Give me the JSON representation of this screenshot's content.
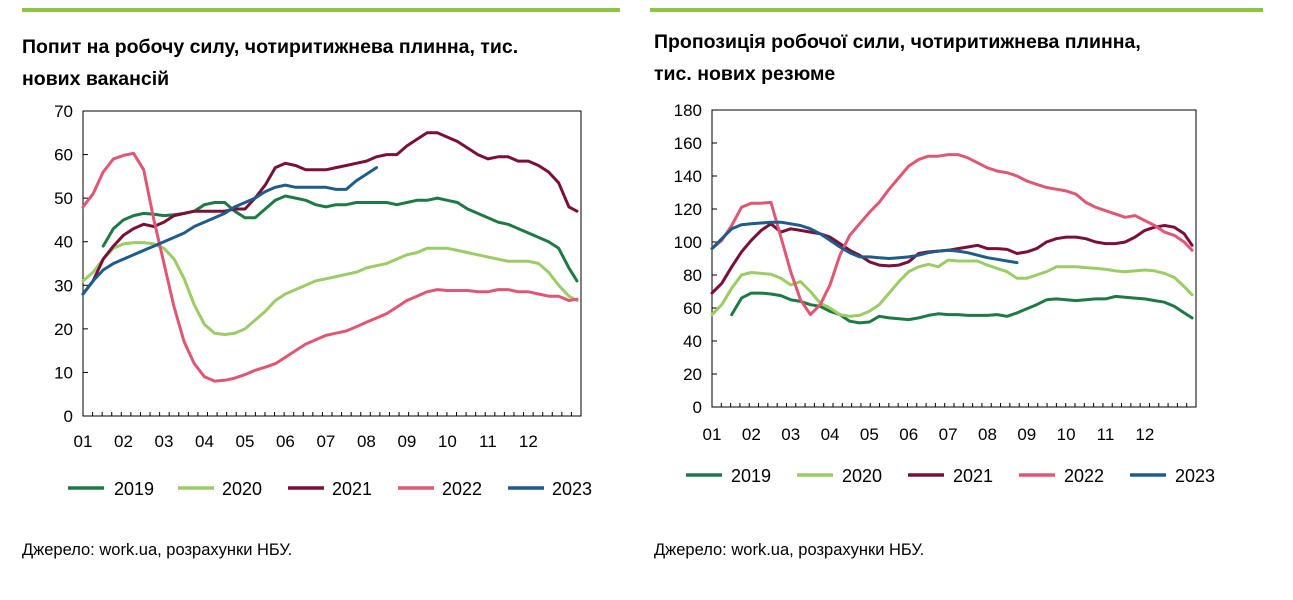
{
  "colors": {
    "2019": "#1e7a45",
    "2020": "#9ccc65",
    "2021": "#7a1038",
    "2022": "#e05776",
    "2023": "#1f5c8c",
    "rule": "#8cc63f"
  },
  "charts": [
    {
      "title_line1": "Попит на робочу силу, чотиритижнева плинна, тис.",
      "title_line2": "нових вакансій",
      "source": "Джерело: work.ua, розрахунки НБУ."
    },
    {
      "title_line1": "Пропозиція робочої сили, чотиритижнева плинна,",
      "title_line2": "тис. нових резюме",
      "source": "Джерело: work.ua, розрахунки НБУ."
    }
  ],
  "chart_data": [
    {
      "type": "line",
      "title": "Попит на робочу силу, чотиритижнева плинна, тис. нових вакансій",
      "categories": [
        "01",
        "02",
        "03",
        "04",
        "05",
        "06",
        "07",
        "08",
        "09",
        "10",
        "11",
        "12"
      ],
      "ylim": [
        0,
        70
      ],
      "yticks": [
        "0",
        "10",
        "20",
        "30",
        "40",
        "50",
        "60",
        "70"
      ],
      "grid": false,
      "legend": "bottom",
      "series": [
        {
          "name": "2019",
          "x": [
            1.5,
            1.75,
            2.0,
            2.25,
            2.5,
            2.75,
            3.0,
            3.25,
            3.5,
            3.75,
            4.0,
            4.25,
            4.5,
            4.75,
            5.0,
            5.25,
            5.5,
            5.75,
            6.0,
            6.25,
            6.5,
            6.75,
            7.0,
            7.25,
            7.5,
            7.75,
            8.0,
            8.25,
            8.5,
            8.75,
            9.0,
            9.25,
            9.5,
            9.75,
            10.0,
            10.25,
            10.5,
            10.75,
            11.0,
            11.25,
            11.5,
            11.75,
            12.0,
            12.25,
            12.5,
            12.75,
            13.0,
            13.2
          ],
          "y": [
            39,
            43,
            45,
            46,
            46.5,
            46.3,
            46,
            46.2,
            46.5,
            47,
            48.5,
            49,
            49,
            47,
            45.5,
            45.5,
            47.5,
            49.5,
            50.5,
            50,
            49.5,
            48.5,
            48,
            48.5,
            48.5,
            49,
            49,
            49,
            49,
            48.5,
            49,
            49.5,
            49.5,
            50,
            49.5,
            49,
            47.5,
            46.5,
            45.5,
            44.5,
            44,
            43,
            42,
            41,
            40,
            38.5,
            34,
            31
          ]
        },
        {
          "name": "2020",
          "x": [
            1.0,
            1.25,
            1.5,
            1.75,
            2.0,
            2.25,
            2.5,
            2.75,
            3.0,
            3.25,
            3.5,
            3.75,
            4.0,
            4.25,
            4.5,
            4.75,
            5.0,
            5.25,
            5.5,
            5.75,
            6.0,
            6.25,
            6.5,
            6.75,
            7.0,
            7.25,
            7.5,
            7.75,
            8.0,
            8.25,
            8.5,
            8.75,
            9.0,
            9.25,
            9.5,
            9.75,
            10.0,
            10.25,
            10.5,
            10.75,
            11.0,
            11.25,
            11.5,
            11.75,
            12.0,
            12.25,
            12.5,
            12.75,
            13.0,
            13.2
          ],
          "y": [
            31,
            33,
            36,
            38.5,
            39.5,
            39.8,
            39.8,
            39.5,
            38.5,
            36,
            31.5,
            25.5,
            21,
            19,
            18.7,
            19,
            20,
            22,
            24,
            26.5,
            28,
            29,
            30,
            31,
            31.5,
            32,
            32.5,
            33,
            34,
            34.5,
            35,
            36,
            37,
            37.5,
            38.5,
            38.5,
            38.5,
            38,
            37.5,
            37,
            36.5,
            36,
            35.5,
            35.5,
            35.5,
            35,
            33,
            30,
            27.5,
            26.5
          ]
        },
        {
          "name": "2021",
          "x": [
            1.0,
            1.25,
            1.5,
            1.75,
            2.0,
            2.25,
            2.5,
            2.75,
            3.0,
            3.25,
            3.5,
            3.75,
            4.0,
            4.25,
            4.5,
            4.75,
            5.0,
            5.25,
            5.5,
            5.75,
            6.0,
            6.25,
            6.5,
            6.75,
            7.0,
            7.25,
            7.5,
            7.75,
            8.0,
            8.25,
            8.5,
            8.75,
            9.0,
            9.25,
            9.5,
            9.75,
            10.0,
            10.25,
            10.5,
            10.75,
            11.0,
            11.25,
            11.5,
            11.75,
            12.0,
            12.25,
            12.5,
            12.75,
            13.0,
            13.2
          ],
          "y": [
            28,
            31,
            36,
            39,
            41.5,
            43,
            44,
            43.5,
            44.5,
            46,
            46.5,
            47,
            47,
            47,
            47,
            47.5,
            47.5,
            50,
            53,
            57,
            58,
            57.5,
            56.5,
            56.5,
            56.5,
            57,
            57.5,
            58,
            58.5,
            59.5,
            60,
            60,
            62,
            63.5,
            65,
            65,
            64,
            63,
            61.5,
            60,
            59,
            59.5,
            59.5,
            58.5,
            58.5,
            57.5,
            56,
            53.5,
            48,
            47
          ]
        },
        {
          "name": "2022",
          "x": [
            1.0,
            1.25,
            1.5,
            1.75,
            2.0,
            2.25,
            2.5,
            2.75,
            3.0,
            3.25,
            3.5,
            3.75,
            4.0,
            4.25,
            4.5,
            4.75,
            5.0,
            5.25,
            5.5,
            5.75,
            6.0,
            6.25,
            6.5,
            6.75,
            7.0,
            7.25,
            7.5,
            7.75,
            8.0,
            8.25,
            8.5,
            8.75,
            9.0,
            9.25,
            9.5,
            9.75,
            10.0,
            10.25,
            10.5,
            10.75,
            11.0,
            11.25,
            11.5,
            11.75,
            12.0,
            12.25,
            12.5,
            12.75,
            13.0,
            13.2
          ],
          "y": [
            48,
            51,
            56,
            59,
            59.8,
            60.3,
            56.5,
            45,
            35,
            25,
            17,
            12,
            9,
            8,
            8.2,
            8.7,
            9.5,
            10.5,
            11.2,
            12,
            13.5,
            15,
            16.5,
            17.5,
            18.5,
            19,
            19.5,
            20.5,
            21.5,
            22.5,
            23.5,
            25,
            26.5,
            27.5,
            28.5,
            29,
            28.8,
            28.8,
            28.8,
            28.5,
            28.5,
            29,
            29,
            28.5,
            28.5,
            28,
            27.5,
            27.5,
            26.5,
            26.8
          ]
        },
        {
          "name": "2023",
          "x": [
            1.0,
            1.25,
            1.5,
            1.75,
            2.0,
            2.25,
            2.5,
            2.75,
            3.0,
            3.25,
            3.5,
            3.75,
            4.0,
            4.25,
            4.5,
            4.75,
            5.0,
            5.25,
            5.5,
            5.75,
            6.0,
            6.25,
            6.5,
            6.75,
            7.0,
            7.25,
            7.5,
            7.75,
            8.0,
            8.25,
            8.5,
            8.75,
            9.0
          ],
          "y": [
            28,
            31,
            33.5,
            35,
            36,
            37,
            38,
            39,
            40,
            41,
            42,
            43.5,
            44.5,
            45.5,
            46.5,
            48,
            49,
            50,
            51.5,
            52.5,
            53,
            52.5,
            52.5,
            52.5,
            52.5,
            52,
            52,
            54,
            55.5,
            57,
            null,
            null,
            null
          ]
        }
      ]
    },
    {
      "type": "line",
      "title": "Пропозиція робочої сили, чотиритижнева плинна, тис. нових резюме",
      "categories": [
        "01",
        "02",
        "03",
        "04",
        "05",
        "06",
        "07",
        "08",
        "09",
        "10",
        "11",
        "12"
      ],
      "ylim": [
        0,
        180
      ],
      "yticks": [
        "0",
        "20",
        "40",
        "60",
        "80",
        "100",
        "120",
        "140",
        "160",
        "180"
      ],
      "grid": false,
      "legend": "bottom",
      "series": [
        {
          "name": "2019",
          "x": [
            1.5,
            1.75,
            2.0,
            2.25,
            2.5,
            2.75,
            3.0,
            3.25,
            3.5,
            3.75,
            4.0,
            4.25,
            4.5,
            4.75,
            5.0,
            5.25,
            5.5,
            5.75,
            6.0,
            6.25,
            6.5,
            6.75,
            7.0,
            7.25,
            7.5,
            7.75,
            8.0,
            8.25,
            8.5,
            8.75,
            9.0,
            9.25,
            9.5,
            9.75,
            10.0,
            10.25,
            10.5,
            10.75,
            11.0,
            11.25,
            11.5,
            11.75,
            12.0,
            12.25,
            12.5,
            12.75,
            13.0,
            13.2
          ],
          "y": [
            56,
            66,
            69,
            69,
            68.5,
            67.5,
            65,
            64,
            62,
            61,
            58,
            56,
            52,
            51,
            51.5,
            55,
            54,
            53.5,
            53,
            54,
            55.5,
            56.5,
            56,
            56,
            55.5,
            55.5,
            55.5,
            56,
            55,
            57,
            59.5,
            62,
            65,
            65.5,
            65,
            64.5,
            65,
            65.5,
            65.5,
            67,
            66.5,
            66,
            65.5,
            64.5,
            63.5,
            61,
            57,
            54
          ]
        },
        {
          "name": "2020",
          "x": [
            1.0,
            1.25,
            1.5,
            1.75,
            2.0,
            2.25,
            2.5,
            2.75,
            3.0,
            3.25,
            3.5,
            3.75,
            4.0,
            4.25,
            4.5,
            4.75,
            5.0,
            5.25,
            5.5,
            5.75,
            6.0,
            6.25,
            6.5,
            6.75,
            7.0,
            7.25,
            7.5,
            7.75,
            8.0,
            8.25,
            8.5,
            8.75,
            9.0,
            9.25,
            9.5,
            9.75,
            10.0,
            10.25,
            10.5,
            10.75,
            11.0,
            11.25,
            11.5,
            11.75,
            12.0,
            12.25,
            12.5,
            12.75,
            13.0,
            13.2
          ],
          "y": [
            56,
            62,
            72,
            80,
            81.5,
            81,
            80.5,
            78,
            74,
            76,
            70,
            63,
            60,
            56,
            55,
            55.5,
            58,
            62,
            69,
            76,
            82,
            85,
            86.5,
            85,
            89,
            88.5,
            88.5,
            88.5,
            86,
            84,
            82,
            78,
            78,
            80,
            82,
            85,
            85,
            85,
            84.5,
            84,
            83.5,
            82.5,
            82,
            82.5,
            83,
            82.5,
            81,
            78.5,
            73,
            68
          ]
        },
        {
          "name": "2021",
          "x": [
            1.0,
            1.25,
            1.5,
            1.75,
            2.0,
            2.25,
            2.5,
            2.75,
            3.0,
            3.25,
            3.5,
            3.75,
            4.0,
            4.25,
            4.5,
            4.75,
            5.0,
            5.25,
            5.5,
            5.75,
            6.0,
            6.25,
            6.5,
            6.75,
            7.0,
            7.25,
            7.5,
            7.75,
            8.0,
            8.25,
            8.5,
            8.75,
            9.0,
            9.25,
            9.5,
            9.75,
            10.0,
            10.25,
            10.5,
            10.75,
            11.0,
            11.25,
            11.5,
            11.75,
            12.0,
            12.25,
            12.5,
            12.75,
            13.0,
            13.2
          ],
          "y": [
            69,
            75,
            85,
            94,
            101,
            107,
            111,
            106,
            108,
            107,
            106,
            105,
            103,
            99,
            95,
            92,
            88,
            86,
            85.5,
            86,
            88,
            93,
            94,
            94.5,
            95,
            96,
            97,
            98,
            96,
            96,
            95.5,
            93,
            94,
            96,
            100,
            102,
            103,
            103,
            102,
            100,
            99,
            99,
            100,
            103,
            107,
            109,
            110,
            109,
            105,
            98
          ]
        },
        {
          "name": "2022",
          "x": [
            1.0,
            1.25,
            1.5,
            1.75,
            2.0,
            2.25,
            2.5,
            2.75,
            3.0,
            3.25,
            3.5,
            3.75,
            4.0,
            4.25,
            4.5,
            4.75,
            5.0,
            5.25,
            5.5,
            5.75,
            6.0,
            6.25,
            6.5,
            6.75,
            7.0,
            7.25,
            7.5,
            7.75,
            8.0,
            8.25,
            8.5,
            8.75,
            9.0,
            9.25,
            9.5,
            9.75,
            10.0,
            10.25,
            10.5,
            10.75,
            11.0,
            11.25,
            11.5,
            11.75,
            12.0,
            12.25,
            12.5,
            12.75,
            13.0,
            13.2
          ],
          "y": [
            96,
            101,
            110,
            121,
            123.5,
            123.5,
            124,
            103,
            82,
            65,
            56,
            62,
            74,
            92,
            104,
            111,
            118,
            124,
            132,
            139,
            146,
            150,
            152,
            152,
            153,
            153,
            151,
            148,
            145,
            143,
            142,
            140,
            137,
            135,
            133,
            132,
            131,
            129,
            124,
            121,
            119,
            117,
            115,
            116,
            113,
            110,
            106,
            104,
            100,
            95
          ]
        },
        {
          "name": "2023",
          "x": [
            1.0,
            1.25,
            1.5,
            1.75,
            2.0,
            2.25,
            2.5,
            2.75,
            3.0,
            3.25,
            3.5,
            3.75,
            4.0,
            4.25,
            4.5,
            4.75,
            5.0,
            5.25,
            5.5,
            5.75,
            6.0,
            6.25,
            6.5,
            6.75,
            7.0,
            7.25,
            7.5,
            7.75,
            8.0,
            8.25,
            8.5,
            8.75,
            9.0
          ],
          "y": [
            96,
            102,
            108,
            110.5,
            111,
            111.5,
            112,
            112,
            111,
            110,
            108,
            105,
            101,
            97,
            93.5,
            91,
            91,
            90.5,
            90,
            90.5,
            91,
            92,
            93.5,
            94.5,
            95,
            94.5,
            93.5,
            92,
            90.5,
            89.5,
            88.5,
            87.5,
            null
          ]
        }
      ]
    }
  ],
  "legend": [
    "2019",
    "2020",
    "2021",
    "2022",
    "2023"
  ]
}
